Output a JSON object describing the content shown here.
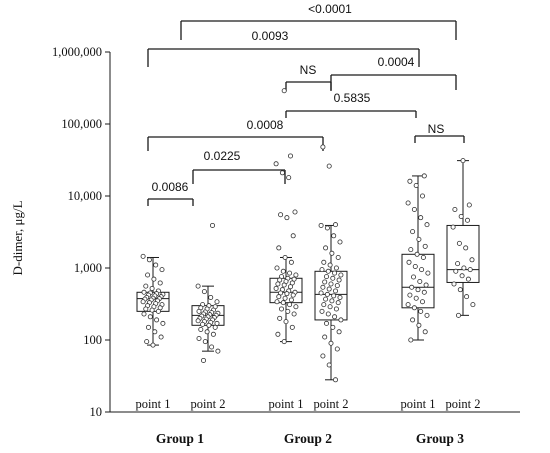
{
  "chart_data": {
    "type": "box",
    "ylabel": "D-dimer, μg/L",
    "yscale": "log",
    "ylim": [
      10,
      1000000
    ],
    "y_ticks": [
      {
        "value": 10,
        "label": "10"
      },
      {
        "value": 100,
        "label": "100"
      },
      {
        "value": 1000,
        "label": "1,000"
      },
      {
        "value": 10000,
        "label": "10,000"
      },
      {
        "value": 100000,
        "label": "100,000"
      },
      {
        "value": 1000000,
        "label": "1,000,000"
      }
    ],
    "groups": [
      "Group 1",
      "Group 2",
      "Group 3"
    ],
    "point_labels": [
      "point 1",
      "point 2"
    ],
    "boxes": [
      {
        "group": "Group 1",
        "point": "point 1",
        "whisker_low": 85,
        "q1": 250,
        "median": 375,
        "q3": 460,
        "whisker_high": 1400,
        "points": [
          1450,
          1300,
          1100,
          950,
          800,
          700,
          620,
          560,
          520,
          480,
          460,
          450,
          440,
          430,
          420,
          410,
          400,
          390,
          380,
          375,
          370,
          360,
          350,
          340,
          330,
          320,
          310,
          300,
          290,
          280,
          270,
          260,
          250,
          230,
          210,
          190,
          170,
          150,
          130,
          110,
          95,
          85
        ]
      },
      {
        "group": "Group 1",
        "point": "point 2",
        "whisker_low": 70,
        "q1": 160,
        "median": 220,
        "q3": 300,
        "whisker_high": 560,
        "points": [
          3900,
          560,
          470,
          390,
          340,
          310,
          300,
          290,
          280,
          270,
          260,
          250,
          245,
          240,
          235,
          230,
          225,
          220,
          215,
          210,
          205,
          200,
          195,
          190,
          185,
          180,
          175,
          170,
          165,
          160,
          150,
          140,
          130,
          120,
          105,
          95,
          80,
          70,
          52
        ]
      },
      {
        "group": "Group 2",
        "point": "point 1",
        "whisker_low": 95,
        "q1": 330,
        "median": 460,
        "q3": 720,
        "whisker_high": 1400,
        "points": [
          290000,
          36000,
          28000,
          21000,
          18000,
          6000,
          5500,
          5000,
          2800,
          1900,
          1400,
          1200,
          1000,
          900,
          850,
          800,
          760,
          720,
          700,
          680,
          650,
          620,
          600,
          580,
          550,
          520,
          500,
          480,
          460,
          450,
          440,
          420,
          400,
          380,
          360,
          340,
          330,
          310,
          290,
          270,
          250,
          230,
          200,
          180,
          150,
          120,
          95
        ]
      },
      {
        "group": "Group 2",
        "point": "point 2",
        "whisker_low": 28,
        "q1": 190,
        "median": 430,
        "q3": 900,
        "whisker_high": 3900,
        "points": [
          48000,
          26000,
          4000,
          3900,
          3600,
          2800,
          2300,
          1900,
          1600,
          1400,
          1200,
          1100,
          1000,
          950,
          900,
          850,
          800,
          760,
          720,
          680,
          640,
          600,
          570,
          540,
          510,
          480,
          450,
          430,
          410,
          390,
          370,
          350,
          330,
          310,
          290,
          270,
          250,
          230,
          210,
          190,
          170,
          150,
          130,
          110,
          90,
          75,
          60,
          45,
          28
        ]
      },
      {
        "group": "Group 3",
        "point": "point 1",
        "whisker_low": 100,
        "q1": 280,
        "median": 540,
        "q3": 1550,
        "whisker_high": 19000,
        "points": [
          19000,
          16000,
          14000,
          10000,
          8000,
          6500,
          5000,
          4000,
          3200,
          2500,
          2000,
          1800,
          1550,
          1400,
          1200,
          1050,
          950,
          850,
          750,
          650,
          580,
          540,
          500,
          460,
          420,
          380,
          340,
          310,
          280,
          250,
          220,
          190,
          160,
          130,
          100
        ]
      },
      {
        "group": "Group 3",
        "point": "point 2",
        "whisker_low": 220,
        "q1": 630,
        "median": 950,
        "q3": 3900,
        "whisker_high": 31000,
        "points": [
          31000,
          7500,
          6500,
          5200,
          4600,
          3700,
          2200,
          1900,
          1300,
          1150,
          1000,
          950,
          900,
          780,
          700,
          600,
          500,
          400,
          310,
          220
        ]
      }
    ],
    "comparisons": [
      {
        "label": "<0.0001"
      },
      {
        "label": "0.0093"
      },
      {
        "label": "NS"
      },
      {
        "label": "0.0004"
      },
      {
        "label": "0.5835"
      },
      {
        "label": "0.0008"
      },
      {
        "label": "NS"
      },
      {
        "label": "0.0225"
      },
      {
        "label": "0.0086"
      }
    ],
    "colors": {
      "ink": "#1a1a1a",
      "marker_fill": "#ffffff"
    }
  }
}
